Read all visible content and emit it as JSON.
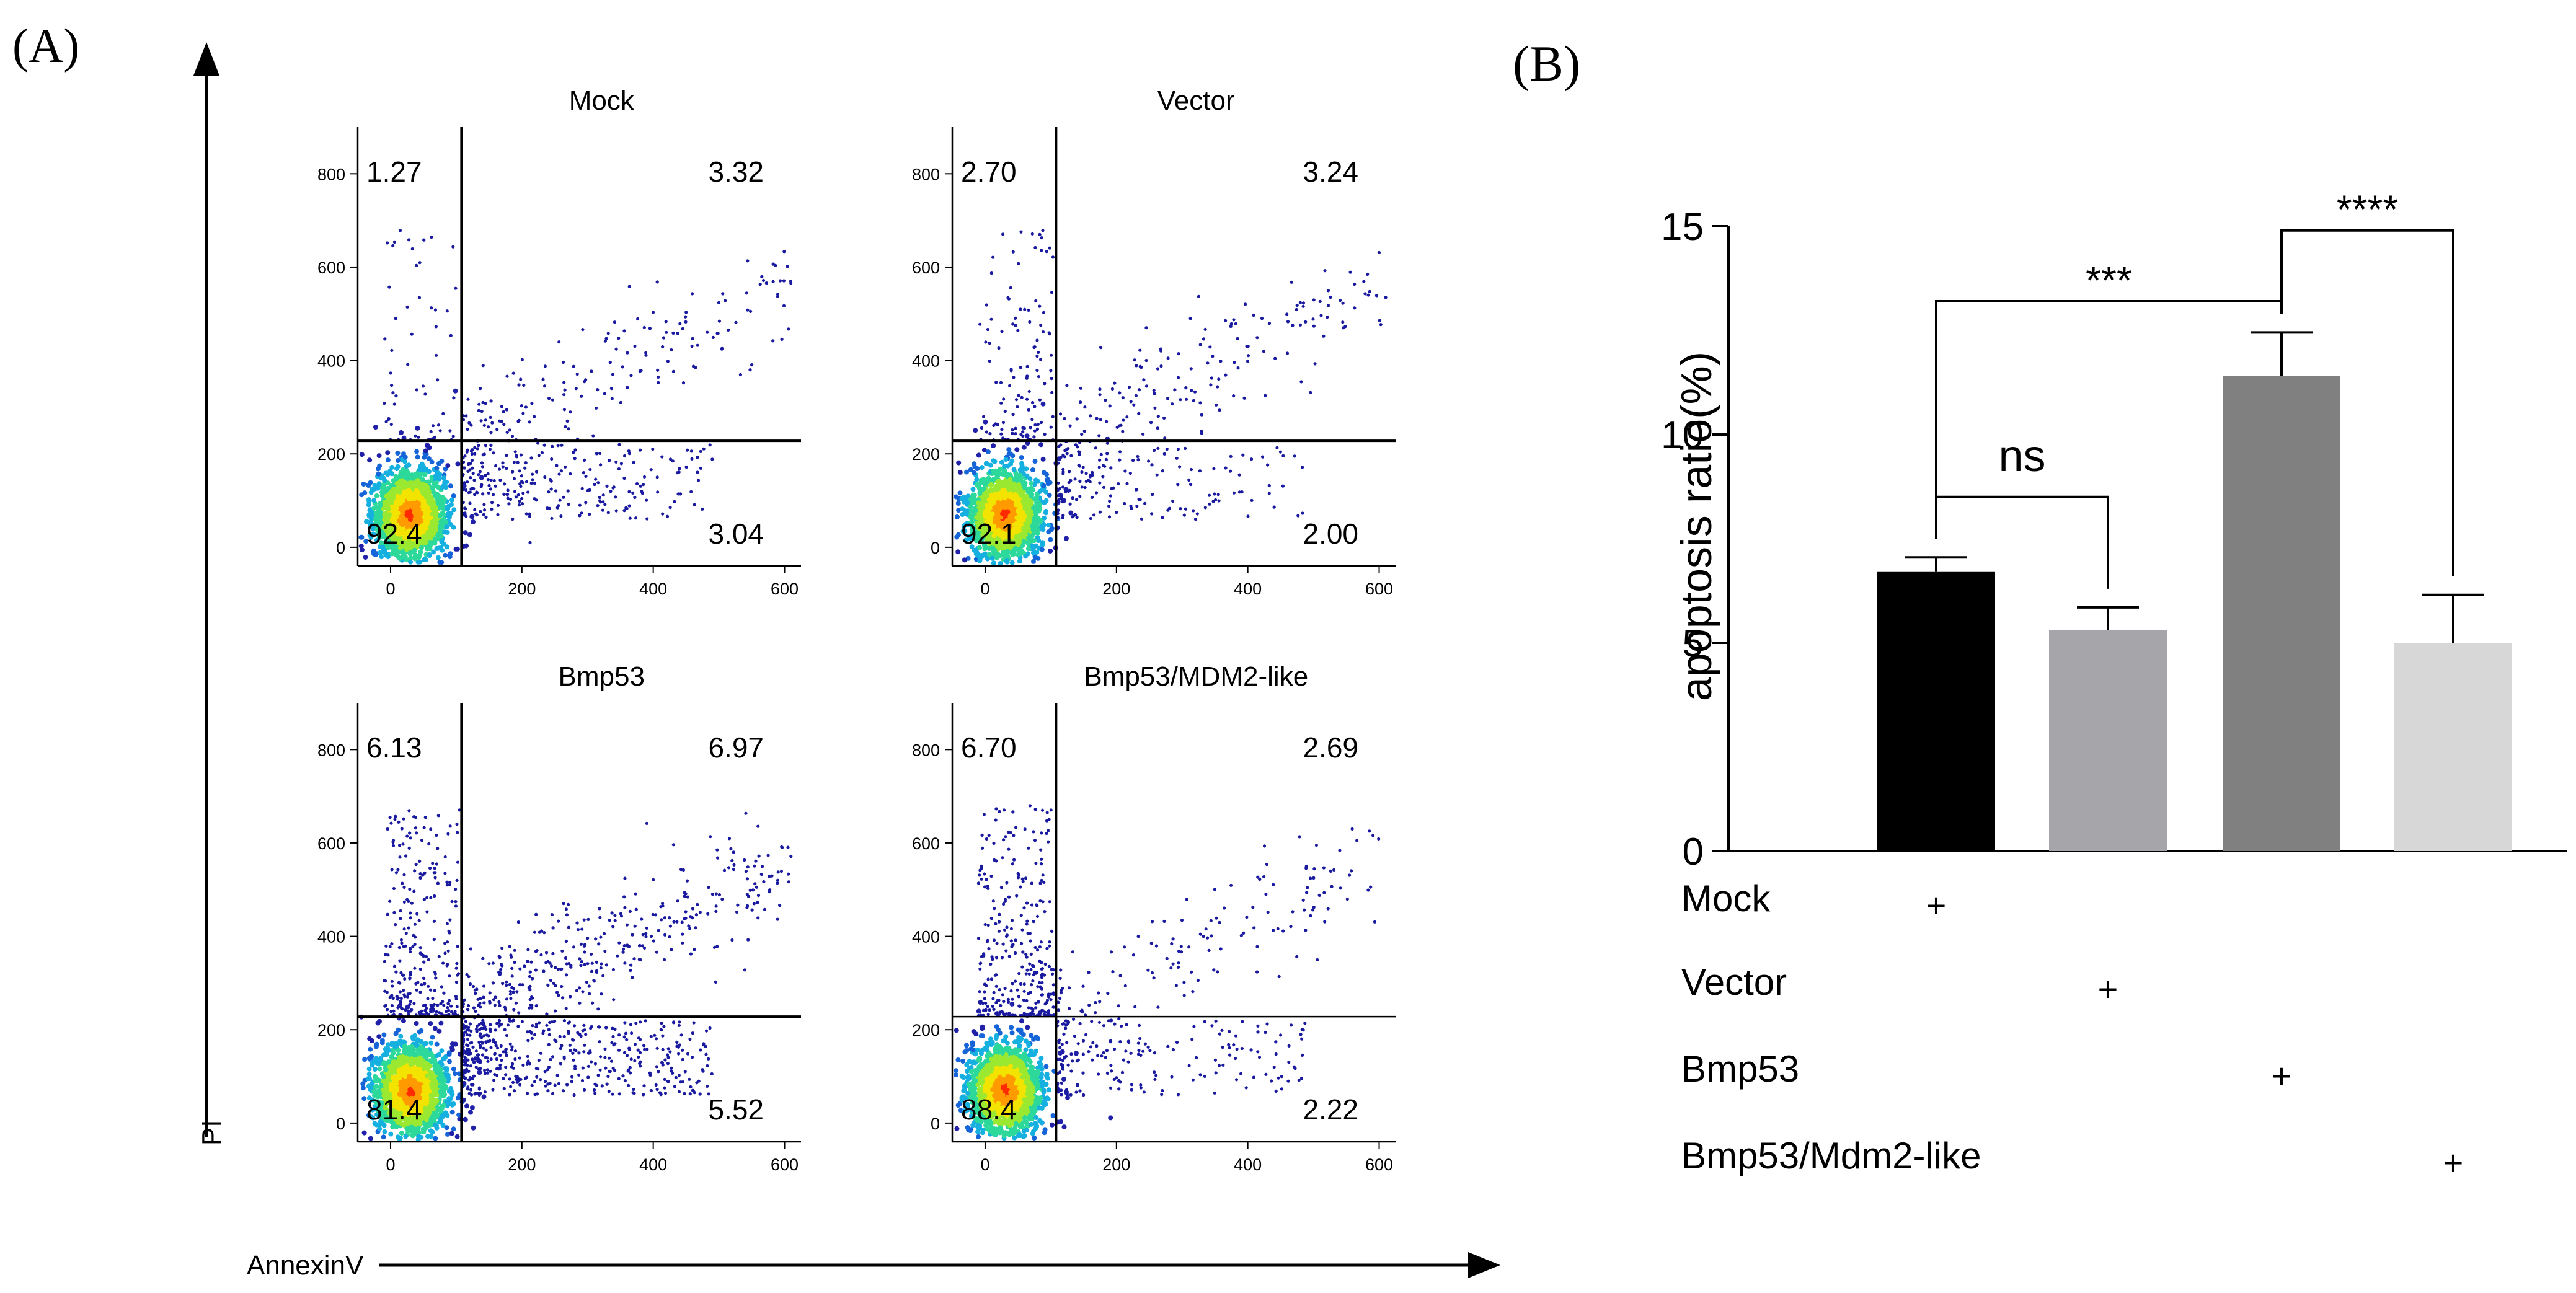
{
  "panel_a": {
    "label": "(A)",
    "x_axis_label": "AnnexinV",
    "y_axis_label": "PI"
  },
  "panel_b": {
    "label": "(B)"
  },
  "colors": {
    "bar_mock": "#000000",
    "bar_vector": "#a5a5aa",
    "bar_bmp53": "#808080",
    "bar_mdm2": "#d7d7d7",
    "density_low": "#1a1aa0",
    "density_high": "#ff2a00"
  },
  "chart_data": [
    {
      "type": "scatter",
      "title": "Mock",
      "xticks": [
        0,
        200,
        400,
        600
      ],
      "yticks": [
        0,
        200,
        400,
        600,
        800
      ],
      "xlim": [
        -50,
        625
      ],
      "ylim": [
        -40,
        900
      ],
      "quadrant_gate": {
        "x": 108,
        "y": 228
      },
      "quadrant_percentages": {
        "upper_left": "1.27",
        "upper_right": "3.32",
        "lower_left": "92.4",
        "lower_right": "3.04"
      }
    },
    {
      "type": "scatter",
      "title": "Vector",
      "xticks": [
        0,
        200,
        400,
        600
      ],
      "yticks": [
        0,
        200,
        400,
        600,
        800
      ],
      "xlim": [
        -50,
        625
      ],
      "ylim": [
        -40,
        900
      ],
      "quadrant_gate": {
        "x": 108,
        "y": 228
      },
      "quadrant_percentages": {
        "upper_left": "2.70",
        "upper_right": "3.24",
        "lower_left": "92.1",
        "lower_right": "2.00"
      }
    },
    {
      "type": "scatter",
      "title": "Bmp53",
      "xticks": [
        0,
        200,
        400,
        600
      ],
      "yticks": [
        0,
        200,
        400,
        600,
        800
      ],
      "xlim": [
        -50,
        625
      ],
      "ylim": [
        -40,
        900
      ],
      "quadrant_gate": {
        "x": 108,
        "y": 228
      },
      "quadrant_percentages": {
        "upper_left": "6.13",
        "upper_right": "6.97",
        "lower_left": "81.4",
        "lower_right": "5.52"
      }
    },
    {
      "type": "scatter",
      "title": "Bmp53/MDM2-like",
      "xticks": [
        0,
        200,
        400,
        600
      ],
      "yticks": [
        0,
        200,
        400,
        600,
        800
      ],
      "xlim": [
        -50,
        625
      ],
      "ylim": [
        -40,
        900
      ],
      "quadrant_gate": {
        "x": 108,
        "y": 228
      },
      "quadrant_percentages": {
        "upper_left": "6.70",
        "upper_right": "2.69",
        "lower_left": "88.4",
        "lower_right": "2.22"
      }
    },
    {
      "type": "bar",
      "title": "",
      "ylabel": "apoptosis ratio(%)",
      "ylim": [
        0,
        15
      ],
      "yticks": [
        0,
        5,
        10,
        15
      ],
      "categories": [
        "Mock",
        "Vector",
        "Bmp53",
        "Bmp53/Mdm2-like"
      ],
      "values": [
        6.7,
        5.3,
        11.4,
        5.0
      ],
      "errors": [
        0.35,
        0.55,
        1.05,
        1.15
      ],
      "group_marker": "+",
      "significance": [
        {
          "from": 0,
          "to": 1,
          "label": "ns"
        },
        {
          "from": 0,
          "to": 2,
          "label": "***"
        },
        {
          "from": 2,
          "to": 3,
          "label": "****"
        }
      ]
    }
  ]
}
